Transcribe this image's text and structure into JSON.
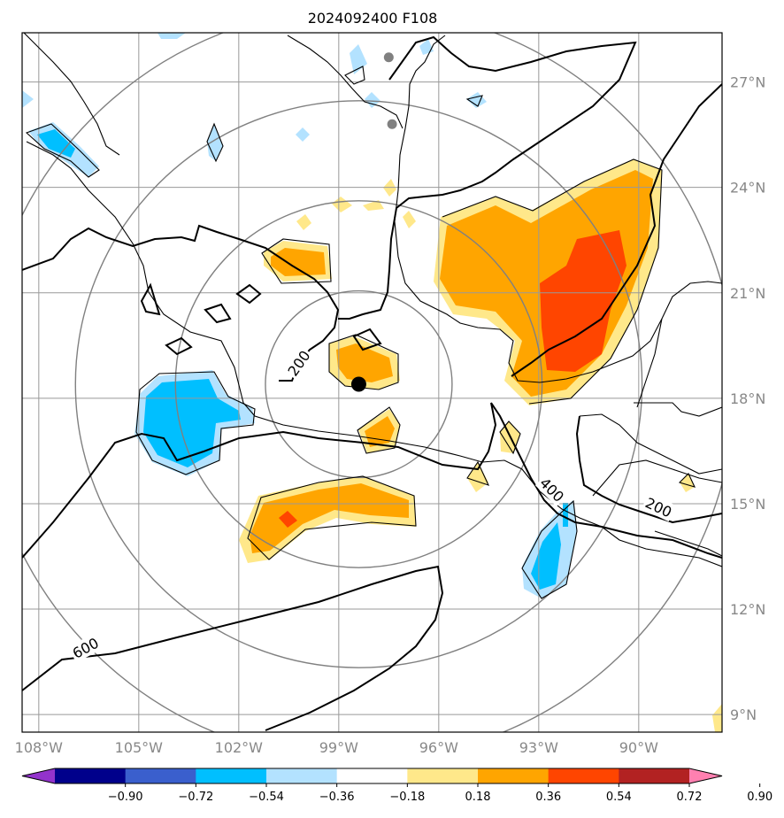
{
  "title": "2024092400 F108",
  "map": {
    "lon_range": [
      -108.5,
      -87.5
    ],
    "lat_range": [
      8.5,
      28.4
    ],
    "lon_ticks": [
      {
        "value": -108,
        "label": "108°W"
      },
      {
        "value": -105,
        "label": "105°W"
      },
      {
        "value": -102,
        "label": "102°W"
      },
      {
        "value": -99,
        "label": "99°W"
      },
      {
        "value": -96,
        "label": "96°W"
      },
      {
        "value": -93,
        "label": "93°W"
      },
      {
        "value": -90,
        "label": "90°W"
      }
    ],
    "lat_ticks": [
      {
        "value": 27,
        "label": "27°N"
      },
      {
        "value": 24,
        "label": "24°N"
      },
      {
        "value": 21,
        "label": "21°N"
      },
      {
        "value": 18,
        "label": "18°N"
      },
      {
        "value": 15,
        "label": "15°N"
      },
      {
        "value": 12,
        "label": "12°N"
      },
      {
        "value": 9,
        "label": "9°N"
      }
    ],
    "grid": true,
    "center": {
      "lon": -98.4,
      "lat": 18.4
    },
    "range_rings_deg": [
      2.8,
      5.5,
      8.5,
      11.3
    ],
    "stations": [
      {
        "lon": -97.5,
        "lat": 27.7
      },
      {
        "lon": -97.4,
        "lat": 25.8
      }
    ],
    "contour_labels": [
      {
        "text": "200",
        "lon": -100.2,
        "lat": 19.0,
        "rotate": -55
      },
      {
        "text": "400",
        "lon": -92.6,
        "lat": 15.4,
        "rotate": 45
      },
      {
        "text": "600",
        "lon": -106.6,
        "lat": 10.9,
        "rotate": -28
      },
      {
        "text": "200",
        "lon": -89.4,
        "lat": 14.9,
        "rotate": 25
      }
    ]
  },
  "colorbar": {
    "ticks": [
      "−0.90",
      "−0.72",
      "−0.54",
      "−0.36",
      "−0.18",
      "0.18",
      "0.36",
      "0.54",
      "0.72",
      "0.90"
    ],
    "colors": [
      "#9333cc",
      "#00008b",
      "#3a5fcd",
      "#00bfff",
      "#b3e2ff",
      "#ffffff",
      "#ffe88a",
      "#ffa500",
      "#ff4500",
      "#b22222",
      "#ff80b0"
    ]
  }
}
